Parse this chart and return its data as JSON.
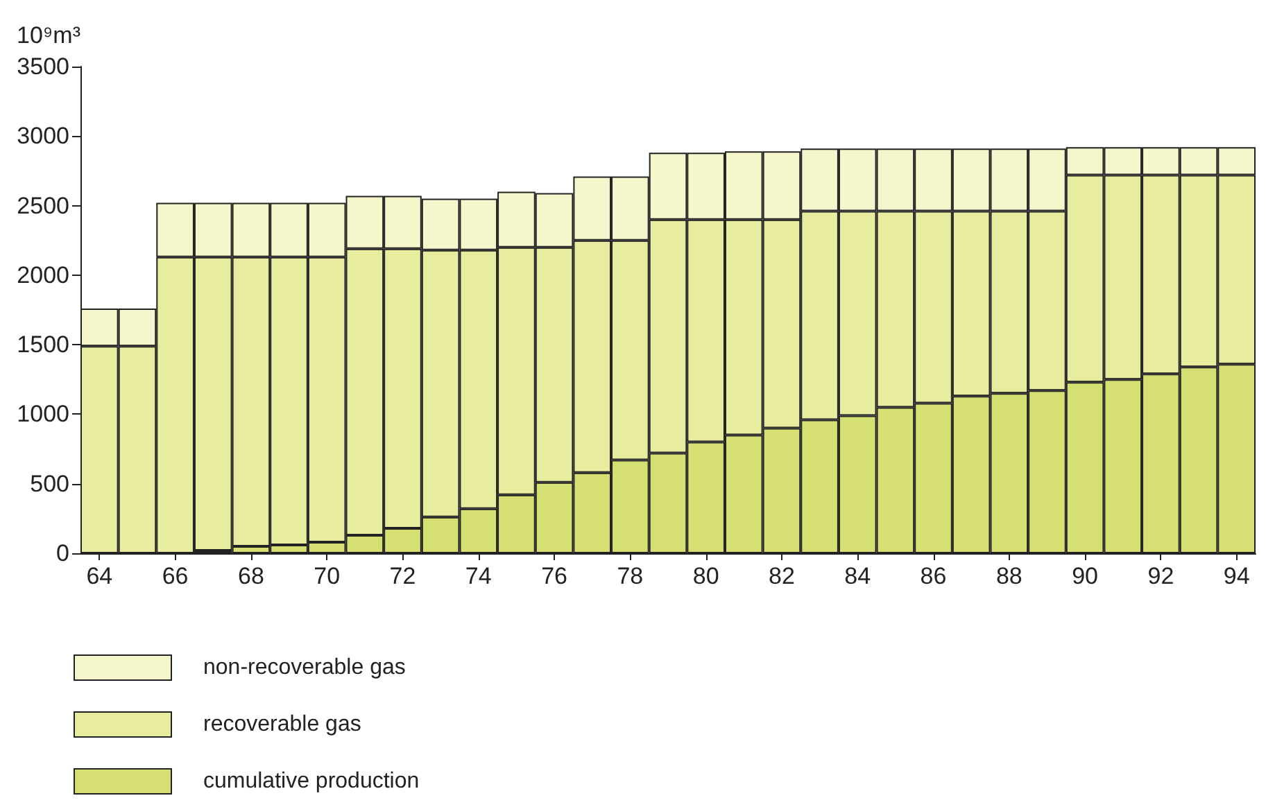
{
  "chart_data": {
    "type": "bar",
    "stacked": true,
    "ylabel": "10⁹m³",
    "categories": [
      "64",
      null,
      "66",
      null,
      "68",
      null,
      "70",
      null,
      "72",
      null,
      "74",
      null,
      "76",
      null,
      "78",
      null,
      "80",
      null,
      "82",
      null,
      "84",
      null,
      "86",
      null,
      "88",
      null,
      "90",
      null,
      "92",
      null,
      "94"
    ],
    "series": [
      {
        "name": "cumulative production",
        "color": "#d6df72",
        "values": [
          0,
          0,
          0,
          20,
          50,
          60,
          80,
          130,
          180,
          260,
          320,
          420,
          510,
          580,
          670,
          720,
          800,
          850,
          900,
          960,
          990,
          1050,
          1080,
          1130,
          1150,
          1170,
          1230,
          1250,
          1290,
          1340,
          1360
        ]
      },
      {
        "name": "recoverable gas",
        "color": "#e7ec9e",
        "values": [
          1490,
          1490,
          2130,
          2110,
          2080,
          2070,
          2050,
          2060,
          2010,
          1920,
          1860,
          1780,
          1690,
          1670,
          1580,
          1680,
          1600,
          1550,
          1500,
          1500,
          1470,
          1410,
          1380,
          1330,
          1310,
          1290,
          1490,
          1470,
          1430,
          1380,
          1360
        ]
      },
      {
        "name": "non-recoverable gas",
        "color": "#f5f6cc",
        "values": [
          270,
          270,
          390,
          390,
          390,
          390,
          390,
          380,
          380,
          370,
          370,
          400,
          390,
          460,
          460,
          480,
          480,
          490,
          490,
          450,
          450,
          450,
          450,
          450,
          450,
          450,
          200,
          200,
          200,
          200,
          200
        ]
      }
    ],
    "ylim": [
      0,
      3500
    ],
    "yticks": [
      0,
      500,
      1000,
      1500,
      2000,
      2500,
      3000,
      3500
    ],
    "grid": false,
    "legend": "bottom left"
  }
}
